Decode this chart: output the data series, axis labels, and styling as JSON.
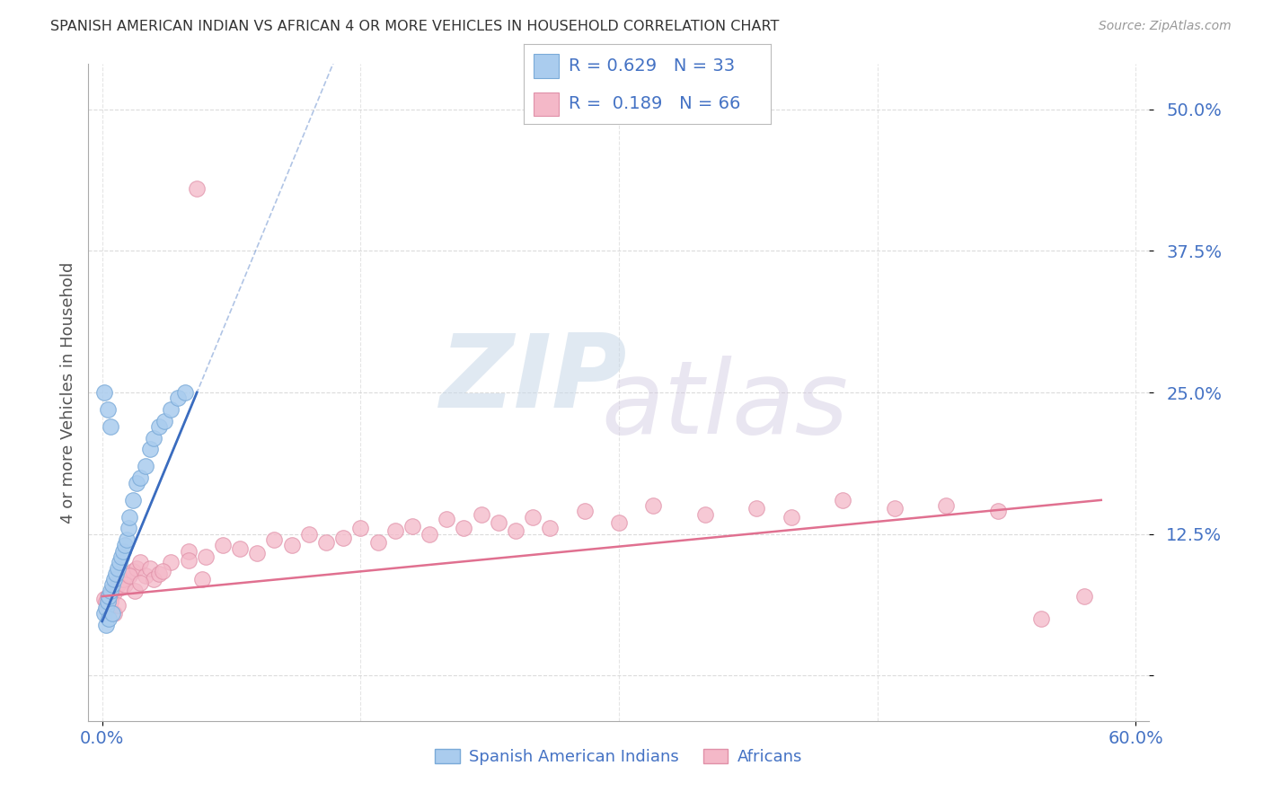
{
  "title": "SPANISH AMERICAN INDIAN VS AFRICAN 4 OR MORE VEHICLES IN HOUSEHOLD CORRELATION CHART",
  "source": "Source: ZipAtlas.com",
  "ylabel": "4 or more Vehicles in Household",
  "x_tick_labels": [
    "0.0%",
    "60.0%"
  ],
  "y_tick_positions": [
    0.0,
    0.125,
    0.25,
    0.375,
    0.5
  ],
  "y_tick_labels": [
    "",
    "12.5%",
    "25.0%",
    "37.5%",
    "50.0%"
  ],
  "legend_entries": [
    {
      "label": "Spanish American Indians",
      "color": "#aec6e8",
      "R": "0.629",
      "N": "33"
    },
    {
      "label": "Africans",
      "color": "#f4b8c1",
      "R": "0.189",
      "N": "66"
    }
  ],
  "blue_color": "#3a6cbf",
  "pink_color": "#e07090",
  "blue_scatter_color": "#aaccee",
  "pink_scatter_color": "#f4b8c8",
  "blue_scatter_edge": "#7aaad8",
  "pink_scatter_edge": "#e090a8",
  "watermark_zip": "ZIP",
  "watermark_atlas": "atlas",
  "background_color": "#ffffff",
  "grid_color": "#cccccc",
  "title_color": "#333333",
  "axis_label_color": "#555555",
  "tick_label_color": "#4472c4",
  "legend_R_color": "#4472c4"
}
